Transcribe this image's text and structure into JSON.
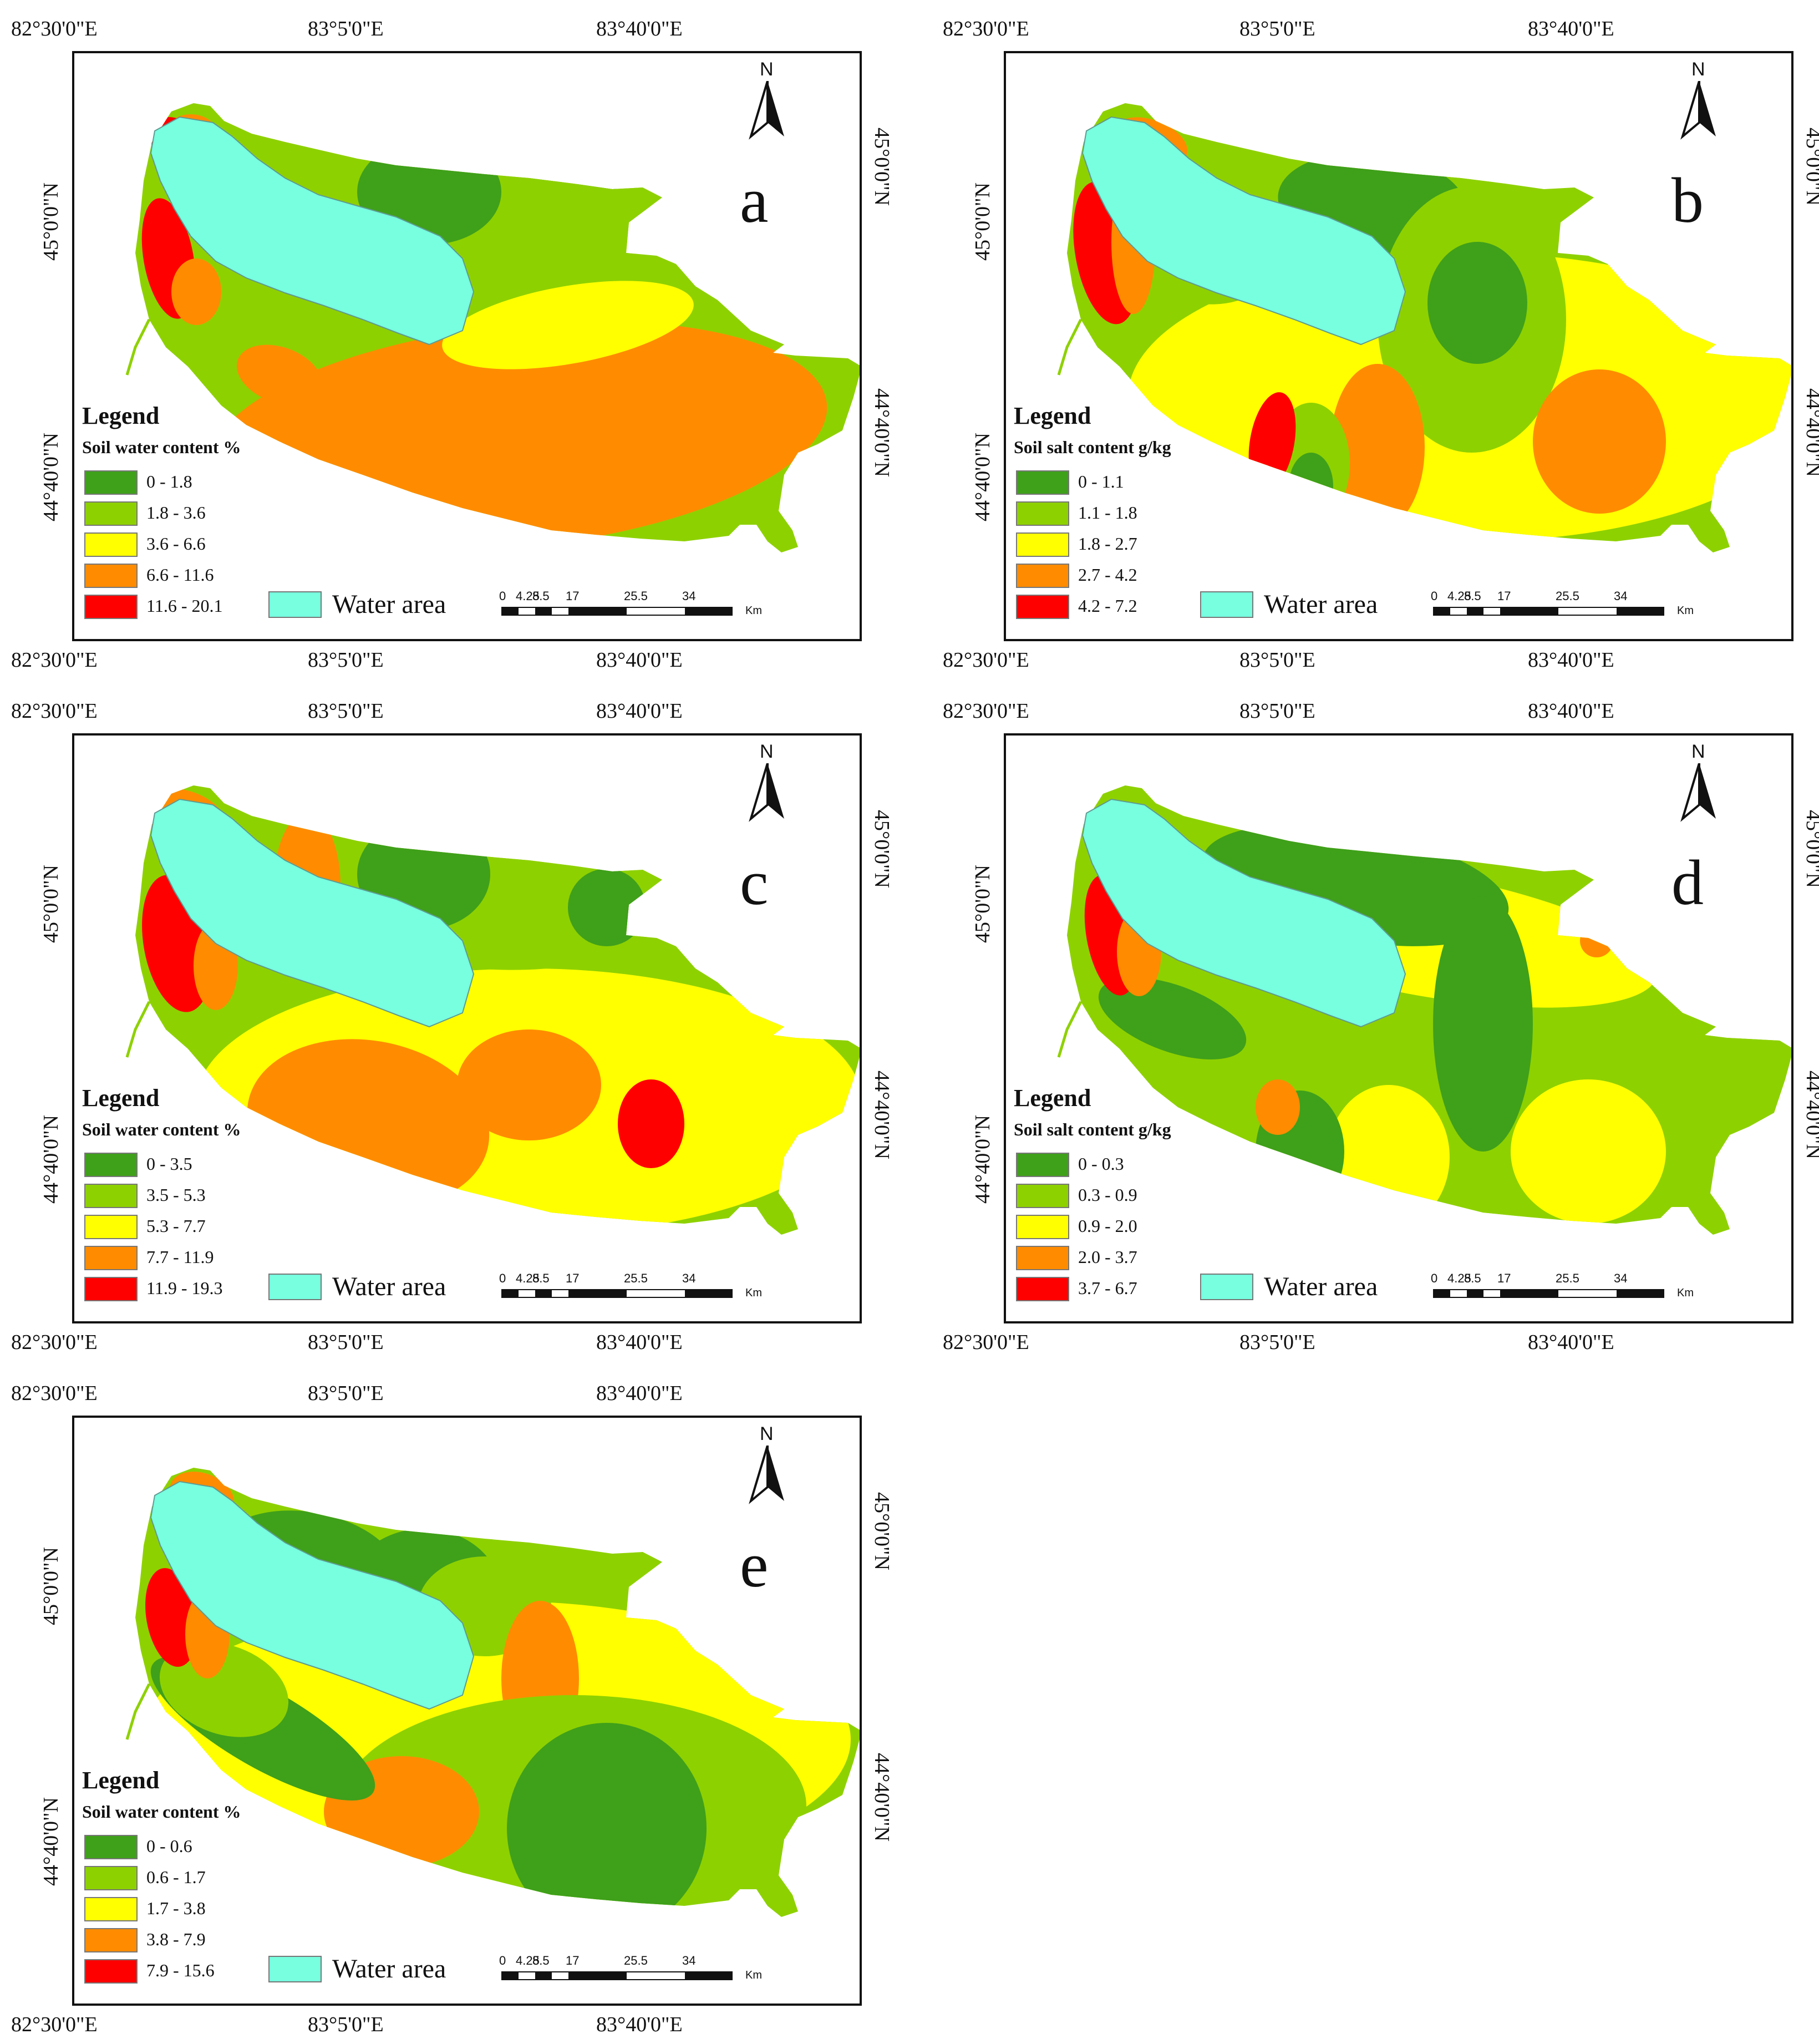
{
  "coords": {
    "lon_left": "82°30'0\"E",
    "lon_mid": "83°5'0\"E",
    "lon_right": "83°40'0\"E",
    "lat_top": "45°0'0\"N",
    "lat_bottom": "44°40'0\"N"
  },
  "north_label": "N",
  "legend_title": "Legend",
  "water_area_label": "Water area",
  "scalebar": {
    "ticks": [
      "0",
      "4.25",
      "8.5",
      "17",
      "25.5",
      "34"
    ],
    "unit": "Km"
  },
  "colors": {
    "class1": "#3fa01a",
    "class2": "#8ed100",
    "class3": "#ffff00",
    "class4": "#ff8c00",
    "class5": "#ff0000",
    "water": "#77ffe0",
    "outline": "#444444"
  },
  "panels": [
    {
      "letter": "a",
      "legend_subtitle": "Soil water content %",
      "classes": [
        "0 - 1.8",
        "1.8 - 3.6",
        "3.6 - 6.6",
        "6.6 - 11.6",
        "11.6 - 20.1"
      ],
      "has_scalebar": true
    },
    {
      "letter": "b",
      "legend_subtitle": "Soil salt content g/kg",
      "classes": [
        "0 - 1.1",
        "1.1 - 1.8",
        "1.8 - 2.7",
        "2.7 - 4.2",
        "4.2 - 7.2"
      ],
      "has_scalebar": true
    },
    {
      "letter": "c",
      "legend_subtitle": "Soil water content  %",
      "classes": [
        "0 - 3.5",
        "3.5 - 5.3",
        "5.3 - 7.7",
        "7.7 - 11.9",
        "11.9 - 19.3"
      ],
      "has_scalebar": true
    },
    {
      "letter": "d",
      "legend_subtitle": "Soil salt content g/kg",
      "classes": [
        "0 - 0.3",
        "0.3 - 0.9",
        "0.9 - 2.0",
        "2.0 - 3.7",
        "3.7 - 6.7"
      ],
      "has_scalebar": true
    },
    {
      "letter": "e",
      "legend_subtitle": "Soil water content %",
      "classes": [
        "0 - 0.6",
        "0.6 - 1.7",
        "1.7 - 3.8",
        "3.8 - 7.9",
        "7.9 - 15.6"
      ],
      "has_scalebar": true
    }
  ]
}
